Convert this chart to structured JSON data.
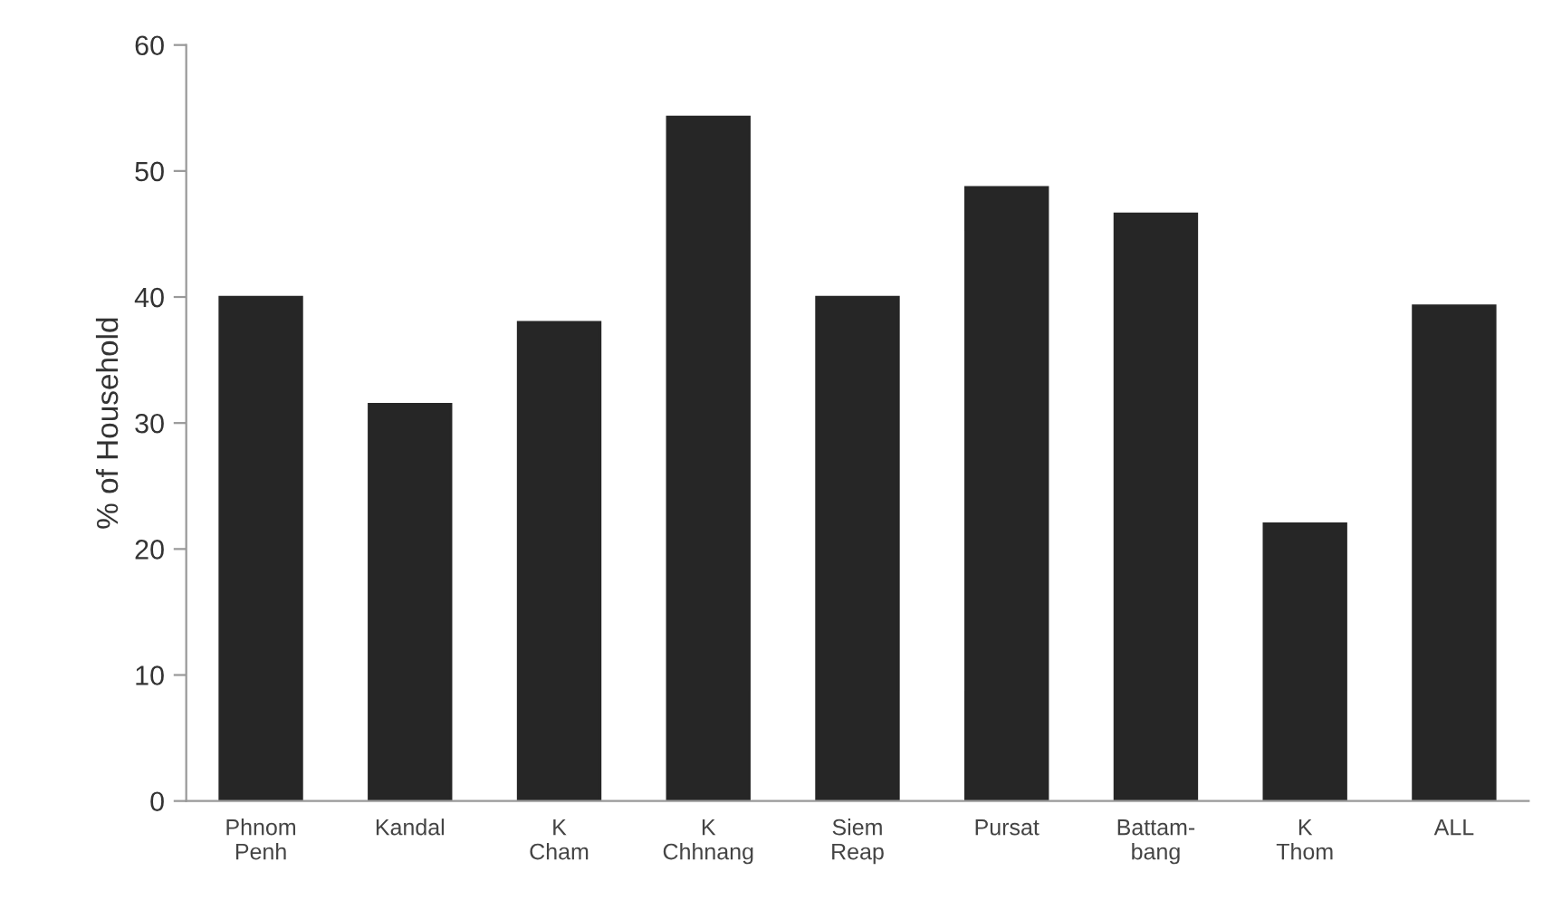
{
  "chart_data": {
    "type": "bar",
    "ylabel": "% of Household",
    "categories": [
      "Phnom\nPenh",
      "Kandal",
      "K\nCham",
      "K\nChhnang",
      "Siem\nReap",
      "Pursat",
      "Battam-\nbang",
      "K\nThom",
      "ALL"
    ],
    "values": [
      40,
      31.5,
      38,
      54.3,
      40,
      48.7,
      46.6,
      22,
      39.3
    ],
    "color": "#262626",
    "ylim": [
      0,
      60
    ],
    "yticks": [
      0,
      10,
      20,
      30,
      40,
      50,
      60
    ],
    "grid": false
  }
}
